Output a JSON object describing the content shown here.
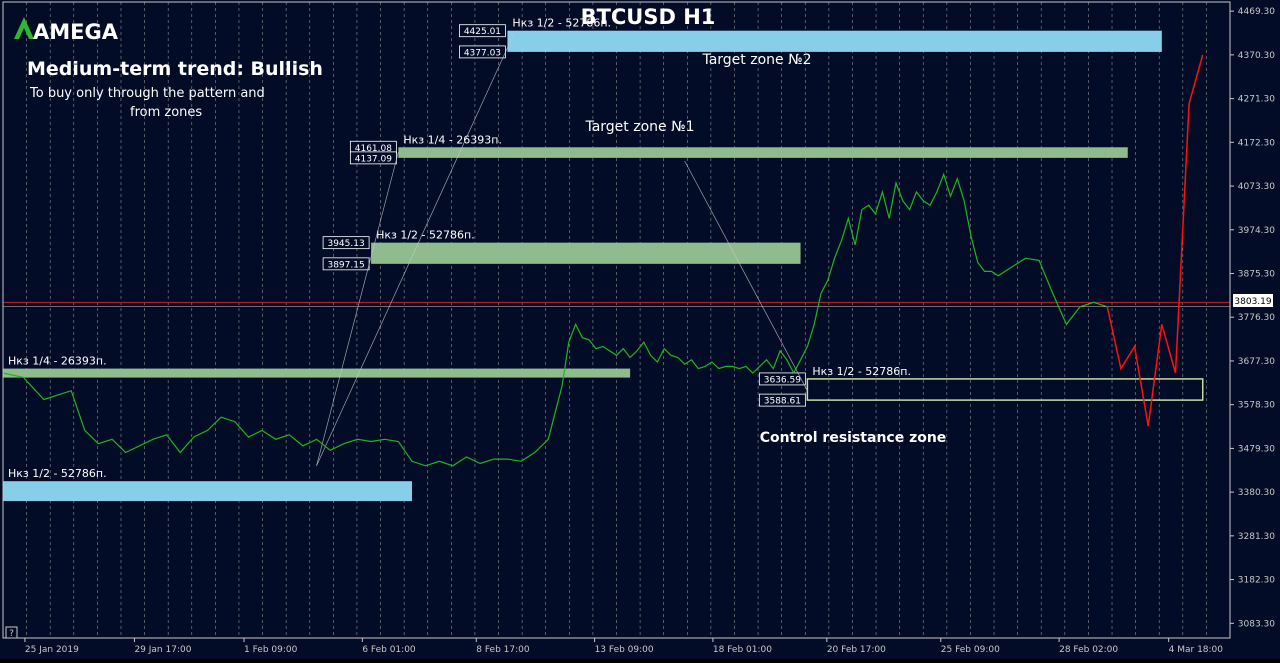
{
  "brand": {
    "name": "AMEGA"
  },
  "texts": {
    "title": "BTCUSD H1",
    "trend": "Medium-term trend: Bullish",
    "note_line1": "To buy only through the pattern  and",
    "note_line2": "from zones",
    "target2": "Target zone №2",
    "target1": "Target zone №1",
    "control": "Control resistance zone",
    "current_price": "3803.19"
  },
  "colors": {
    "background": "#030c26",
    "grid": "#c8c8c8",
    "price_line": "#1fb51f",
    "forecast_line": "#ff1010",
    "zone_blue": "#87ceeb",
    "zone_green": "#8fbc8f",
    "zone_outline": "#c8dca0",
    "bid_line": "#c81e1e",
    "axis": "#c8c8c8"
  },
  "chart_data": {
    "type": "line",
    "title": "BTCUSD H1",
    "ylim": [
      3050,
      4490
    ],
    "y_ticks": [
      "4469.30",
      "4370.30",
      "4271.30",
      "4172.30",
      "4073.30",
      "3974.30",
      "3875.30",
      "3776.30",
      "3677.30",
      "3578.30",
      "3479.30",
      "3380.30",
      "3281.30",
      "3182.30",
      "3083.30"
    ],
    "x_ticks": [
      "25 Jan 2019",
      "29 Jan 17:00",
      "1 Feb 09:00",
      "6 Feb 01:00",
      "8 Feb 17:00",
      "13 Feb 09:00",
      "18 Feb 01:00",
      "20 Feb 17:00",
      "25 Feb 09:00",
      "28 Feb 02:00",
      "4 Mar 18:00"
    ],
    "grid": true,
    "bid_price": 3810,
    "series": [
      {
        "role": "price",
        "x": [
          0,
          3,
          6,
          10,
          12,
          14,
          16,
          18,
          20,
          22,
          24,
          26,
          28,
          30,
          32,
          34,
          36,
          38,
          40,
          42,
          44,
          46,
          48,
          50,
          52,
          54,
          56,
          58,
          60,
          62,
          64,
          66,
          68,
          70,
          72,
          74,
          76,
          78,
          80,
          81,
          82,
          83,
          84,
          85,
          86,
          87,
          88,
          89,
          90,
          91,
          92,
          93,
          94,
          95,
          96,
          97,
          98,
          99,
          100,
          101,
          102,
          103,
          104,
          105,
          106,
          107,
          108,
          109,
          110,
          111,
          112,
          113,
          114,
          115,
          116,
          117,
          118,
          119,
          120,
          121,
          122,
          123,
          124,
          125,
          126,
          127,
          128,
          129,
          130,
          131,
          132,
          133,
          134,
          135,
          136,
          137,
          138,
          139,
          140,
          141,
          142,
          143,
          144,
          145,
          146,
          148,
          150,
          152,
          154,
          156,
          158,
          160,
          162
        ],
        "y": [
          3650,
          3640,
          3590,
          3610,
          3520,
          3490,
          3500,
          3470,
          3485,
          3500,
          3510,
          3470,
          3505,
          3520,
          3550,
          3540,
          3505,
          3520,
          3500,
          3510,
          3485,
          3500,
          3475,
          3490,
          3500,
          3495,
          3500,
          3495,
          3450,
          3440,
          3450,
          3440,
          3460,
          3445,
          3455,
          3455,
          3450,
          3470,
          3500,
          3560,
          3620,
          3720,
          3760,
          3730,
          3725,
          3705,
          3710,
          3700,
          3690,
          3705,
          3685,
          3700,
          3720,
          3690,
          3675,
          3705,
          3690,
          3685,
          3670,
          3680,
          3660,
          3665,
          3675,
          3660,
          3665,
          3665,
          3660,
          3665,
          3650,
          3665,
          3680,
          3660,
          3700,
          3680,
          3650,
          3680,
          3710,
          3760,
          3830,
          3860,
          3910,
          3950,
          4000,
          3940,
          4020,
          4030,
          4010,
          4060,
          4000,
          4080,
          4040,
          4020,
          4060,
          4040,
          4030,
          4060,
          4100,
          4050,
          4090,
          4040,
          3960,
          3900,
          3880,
          3880,
          3870,
          3890,
          3910,
          3905,
          3830,
          3760,
          3800,
          3810,
          3800
        ]
      },
      {
        "role": "forecast",
        "x": [
          162,
          164,
          166,
          168,
          170,
          172,
          174,
          176
        ],
        "y": [
          3800,
          3660,
          3710,
          3530,
          3760,
          3650,
          4260,
          4370
        ]
      }
    ],
    "zones": [
      {
        "label": "Нкз 1/2 - 52786п.",
        "top": 4425.01,
        "bottom": 4377.03,
        "x0": 74,
        "x1": 170,
        "style": "blue"
      },
      {
        "label": "Нкз 1/4 - 26393п.",
        "top": 4161.08,
        "bottom": 4137.09,
        "x0": 58,
        "x1": 165,
        "style": "green"
      },
      {
        "label": "Нкз 1/2 - 52786п.",
        "top": 3945.13,
        "bottom": 3897.15,
        "x0": 54,
        "x1": 117,
        "style": "green"
      },
      {
        "label": "Нкз 1/4 - 26393п.",
        "top": 3660,
        "bottom": 3640,
        "x0": 0,
        "x1": 92,
        "style": "green"
      },
      {
        "label": "Нкз 1/2 - 52786п.",
        "top": 3405,
        "bottom": 3360,
        "x0": 0,
        "x1": 60,
        "style": "blue"
      },
      {
        "label": "Нкз 1/2 - 52786п.",
        "top": 3636.59,
        "bottom": 3588.61,
        "x0": 118,
        "x1": 176,
        "style": "outline"
      }
    ],
    "zone_price_labels": [
      "4425.01",
      "4377.03",
      "4161.08",
      "4137.09",
      "3945.13",
      "3897.15",
      "3636.59",
      "3588.61"
    ]
  }
}
